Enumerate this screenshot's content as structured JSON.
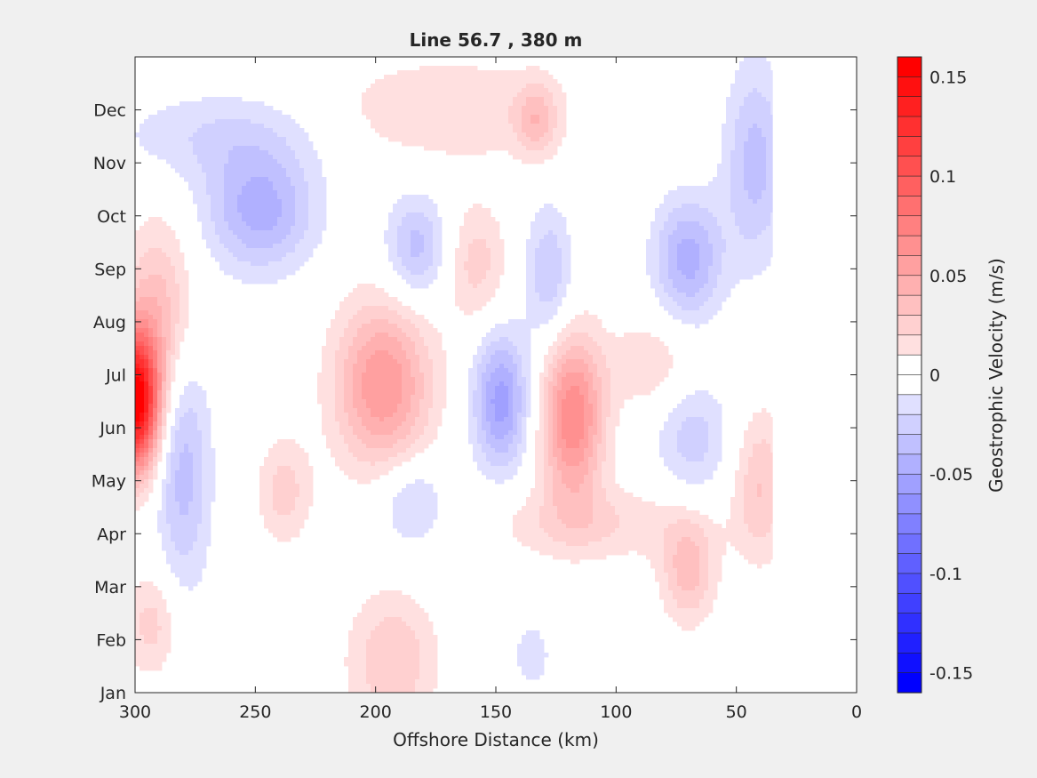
{
  "chart_data": {
    "type": "heatmap",
    "title": "Line 56.7 , 380 m",
    "xlabel": "Offshore Distance (km)",
    "ylabel": "",
    "xlim": [
      300,
      0
    ],
    "x_direction": "reversed",
    "x_ticks": [
      300,
      250,
      200,
      150,
      100,
      50,
      0
    ],
    "y_ticks": [
      "Jan",
      "Feb",
      "Mar",
      "Apr",
      "May",
      "Jun",
      "Jul",
      "Aug",
      "Sep",
      "Oct",
      "Nov",
      "Dec"
    ],
    "colorbar": {
      "label": "Geostrophic Velocity (m/s)",
      "range": [
        -0.16,
        0.16
      ],
      "levels_step": 0.01,
      "ticks": [
        0.15,
        0.1,
        0.05,
        0,
        -0.05,
        -0.1,
        -0.15
      ],
      "tick_labels": [
        "0.15",
        "0.1",
        "0.05",
        "0",
        "-0.05",
        "-0.1",
        "-0.15"
      ],
      "colormap": "blue-white-red",
      "neg_color": "#0000ff",
      "pos_color": "#ff0000",
      "zero_color": "#ffffff"
    },
    "features": [
      {
        "x": 300,
        "month": 5.5,
        "value": 0.16,
        "sx": 7,
        "sm": 0.9
      },
      {
        "x": 290,
        "month": 7.2,
        "value": 0.035,
        "sx": 10,
        "sm": 1.2
      },
      {
        "x": 293,
        "month": 1.3,
        "value": 0.025,
        "sx": 8,
        "sm": 0.7
      },
      {
        "x": 280,
        "month": 4.2,
        "value": -0.035,
        "sx": 8,
        "sm": 1.6
      },
      {
        "x": 248,
        "month": 9.1,
        "value": -0.045,
        "sx": 16,
        "sm": 0.8
      },
      {
        "x": 265,
        "month": 10.5,
        "value": -0.02,
        "sx": 30,
        "sm": 0.6
      },
      {
        "x": 197,
        "month": 5.8,
        "value": 0.06,
        "sx": 14,
        "sm": 1.1
      },
      {
        "x": 193,
        "month": 0.6,
        "value": 0.03,
        "sx": 13,
        "sm": 0.9
      },
      {
        "x": 148,
        "month": 5.5,
        "value": -0.055,
        "sx": 8,
        "sm": 0.9
      },
      {
        "x": 118,
        "month": 5.2,
        "value": 0.07,
        "sx": 9,
        "sm": 1.1
      },
      {
        "x": 110,
        "month": 3.2,
        "value": 0.02,
        "sx": 32,
        "sm": 0.5
      },
      {
        "x": 183,
        "month": 8.4,
        "value": -0.035,
        "sx": 9,
        "sm": 0.7
      },
      {
        "x": 158,
        "month": 8.1,
        "value": 0.025,
        "sx": 9,
        "sm": 0.8
      },
      {
        "x": 128,
        "month": 7.9,
        "value": -0.03,
        "sx": 7,
        "sm": 0.9
      },
      {
        "x": 70,
        "month": 8.2,
        "value": -0.045,
        "sx": 10,
        "sm": 0.8
      },
      {
        "x": 70,
        "month": 2.3,
        "value": 0.035,
        "sx": 8,
        "sm": 0.7
      },
      {
        "x": 68,
        "month": 4.8,
        "value": -0.025,
        "sx": 11,
        "sm": 0.8
      },
      {
        "x": 40,
        "month": 3.9,
        "value": 0.03,
        "sx": 8,
        "sm": 1.0
      },
      {
        "x": 42,
        "month": 10.0,
        "value": -0.035,
        "sx": 9,
        "sm": 1.3
      },
      {
        "x": 170,
        "month": 11.0,
        "value": 0.02,
        "sx": 35,
        "sm": 0.7
      },
      {
        "x": 133,
        "month": 10.8,
        "value": 0.03,
        "sx": 6,
        "sm": 0.5
      },
      {
        "x": 238,
        "month": 3.8,
        "value": 0.025,
        "sx": 8,
        "sm": 0.7
      },
      {
        "x": 185,
        "month": 3.6,
        "value": -0.025,
        "sx": 10,
        "sm": 0.6
      },
      {
        "x": 135,
        "month": 0.7,
        "value": -0.02,
        "sx": 5,
        "sm": 0.4
      },
      {
        "x": 86,
        "month": 6.2,
        "value": 0.02,
        "sx": 12,
        "sm": 0.6
      }
    ],
    "data_right_limit": 35
  }
}
